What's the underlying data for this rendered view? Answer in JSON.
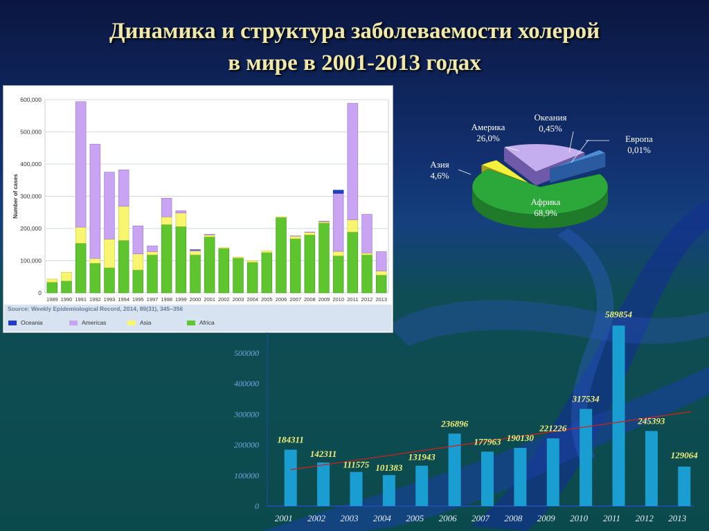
{
  "title": {
    "line1": "Динамика и структура заболеваемости холерой",
    "line2": "в мире в 2001-2013 годах"
  },
  "colors": {
    "africa": "#5ec52e",
    "asia": "#f8f570",
    "americas": "#c9a4f2",
    "oceania": "#1f3fc8",
    "pie_africa": "#2ca83a",
    "pie_americas": "#c4aef0",
    "pie_asia": "#f5f03c",
    "pie_oceania": "#4a8ed6",
    "bar": "#1a9ed2",
    "trend": "#c8241f",
    "bar_label": "#f2f07a"
  },
  "chart_data": [
    {
      "type": "bar",
      "stacked": true,
      "ylabel": "Number of cases",
      "ylim": [
        0,
        600000
      ],
      "yticks": [
        "600,000",
        "500,000",
        "400,000",
        "300,000",
        "200,000",
        "100,000",
        "0"
      ],
      "yticks_values": [
        600000,
        500000,
        400000,
        300000,
        200000,
        100000,
        0
      ],
      "grid": true,
      "legend_position": "bottom",
      "source": "Source: Weekly Epidemiological Record, 2014, 89(31), 345–356",
      "categories": [
        "1989",
        "1990",
        "1991",
        "1992",
        "1993",
        "1994",
        "1995",
        "1997",
        "1998",
        "1999",
        "2000",
        "2001",
        "2002",
        "2003",
        "2004",
        "2005",
        "2006",
        "2007",
        "2008",
        "2009",
        "2010",
        "2011",
        "2012",
        "2013"
      ],
      "series": [
        {
          "name": "Africa",
          "values": [
            33000,
            37000,
            154000,
            92000,
            78000,
            163000,
            71000,
            118000,
            212000,
            206000,
            118000,
            174000,
            138000,
            108000,
            95000,
            125000,
            234000,
            168000,
            180000,
            217000,
            115000,
            189000,
            118000,
            55000
          ]
        },
        {
          "name": "Asia",
          "values": [
            10000,
            27000,
            50000,
            15000,
            89000,
            106000,
            50000,
            10000,
            24000,
            42000,
            12000,
            6000,
            2000,
            3000,
            5000,
            5000,
            2000,
            8000,
            8000,
            4000,
            14000,
            38000,
            6000,
            13000
          ]
        },
        {
          "name": "Americas",
          "values": [
            0,
            0,
            390000,
            355000,
            208000,
            113000,
            87000,
            18000,
            58000,
            7000,
            3000,
            2000,
            0,
            0,
            0,
            0,
            0,
            1000,
            1000,
            2000,
            180000,
            362000,
            120000,
            60000
          ]
        },
        {
          "name": "Oceania",
          "values": [
            0,
            0,
            0,
            0,
            0,
            0,
            0,
            0,
            0,
            0,
            1000,
            0,
            0,
            0,
            0,
            0,
            0,
            0,
            0,
            0,
            10000,
            0,
            0,
            0
          ]
        }
      ]
    },
    {
      "type": "pie",
      "three_d": true,
      "slices": [
        {
          "label": "Африка",
          "value_label": "68,9%",
          "value": 68.9
        },
        {
          "label": "Америка",
          "value_label": "26,0%",
          "value": 26.0
        },
        {
          "label": "Азия",
          "value_label": "4,6%",
          "value": 4.6
        },
        {
          "label": "Океания",
          "value_label": "0,45%",
          "value": 0.45
        },
        {
          "label": "Европа",
          "value_label": "0,01%",
          "value": 0.01
        }
      ]
    },
    {
      "type": "bar",
      "categories": [
        "2001",
        "2002",
        "2003",
        "2004",
        "2005",
        "2006",
        "2007",
        "2008",
        "2009",
        "2010",
        "2011",
        "2012",
        "2013"
      ],
      "values": [
        184311,
        142311,
        111575,
        101383,
        131943,
        236896,
        177963,
        190130,
        221226,
        317534,
        589854,
        245393,
        129064
      ],
      "value_labels": [
        "184311",
        "142311",
        "111575",
        "101383",
        "131943",
        "236896",
        "177963",
        "190130",
        "221226",
        "317534",
        "589854",
        "245393",
        "129064"
      ],
      "ylim": [
        0,
        600000
      ],
      "yticks": [
        "500000",
        "400000",
        "300000",
        "200000",
        "100000",
        "0"
      ],
      "yticks_values": [
        500000,
        400000,
        300000,
        200000,
        100000,
        0
      ],
      "trendline": {
        "type": "linear"
      }
    }
  ]
}
